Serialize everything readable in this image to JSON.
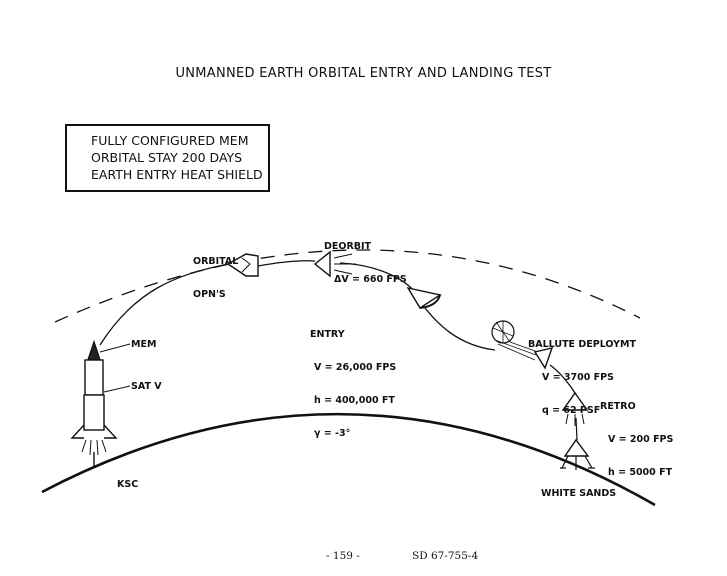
{
  "title": "UNMANNED EARTH ORBITAL ENTRY AND LANDING TEST",
  "config_box": {
    "lines": [
      "FULLY CONFIGURED MEM",
      "ORBITAL STAY 200 DAYS",
      "EARTH ENTRY HEAT SHIELD"
    ]
  },
  "labels": {
    "orbital_ops": [
      "ORBITAL",
      "OPN'S"
    ],
    "deorbit": [
      "DEORBIT",
      "ΔV = 660 FPS"
    ],
    "entry": [
      "ENTRY",
      "V = 26,000 FPS",
      "h = 400,000 FT",
      "γ = -3°"
    ],
    "ballute": [
      "BALLUTE DEPLOYMT",
      "V = 3700 FPS",
      "q = 62 PSF"
    ],
    "retro": [
      "RETRO",
      "V = 200 FPS",
      "h = 5000 FT"
    ],
    "mem": "MEM",
    "sat_v": "SAT V",
    "ksc": "KSC",
    "white_sands": "WHITE SANDS"
  },
  "footer": {
    "page": "- 159 -",
    "doc_id": "SD 67-755-4"
  }
}
